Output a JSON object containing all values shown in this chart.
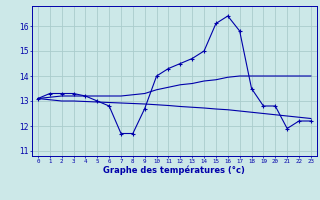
{
  "hours": [
    0,
    1,
    2,
    3,
    4,
    5,
    6,
    7,
    8,
    9,
    10,
    11,
    12,
    13,
    14,
    15,
    16,
    17,
    18,
    19,
    20,
    21,
    22,
    23
  ],
  "temp_main": [
    13.1,
    13.3,
    13.3,
    13.3,
    13.2,
    13.0,
    12.8,
    11.7,
    11.7,
    12.7,
    14.0,
    14.3,
    14.5,
    14.7,
    15.0,
    16.1,
    16.4,
    15.8,
    13.5,
    12.8,
    12.8,
    11.9,
    12.2,
    12.2
  ],
  "temp_line1": [
    13.1,
    13.15,
    13.2,
    13.2,
    13.2,
    13.2,
    13.2,
    13.2,
    13.25,
    13.3,
    13.45,
    13.55,
    13.65,
    13.7,
    13.8,
    13.85,
    13.95,
    14.0,
    14.0,
    14.0,
    14.0,
    14.0,
    14.0,
    14.0
  ],
  "temp_line2": [
    13.1,
    13.05,
    13.0,
    13.0,
    12.98,
    12.96,
    12.94,
    12.92,
    12.9,
    12.88,
    12.85,
    12.82,
    12.78,
    12.75,
    12.72,
    12.68,
    12.65,
    12.6,
    12.55,
    12.5,
    12.45,
    12.4,
    12.35,
    12.3
  ],
  "bg_color": "#cce8e8",
  "grid_color": "#aacccc",
  "line_color": "#0000aa",
  "title": "Graphe des températures (°c)",
  "ylabel_ticks": [
    11,
    12,
    13,
    14,
    15,
    16
  ],
  "ylim": [
    10.8,
    16.8
  ],
  "xlim": [
    -0.5,
    23.5
  ],
  "figsize": [
    3.2,
    2.0
  ],
  "dpi": 100
}
